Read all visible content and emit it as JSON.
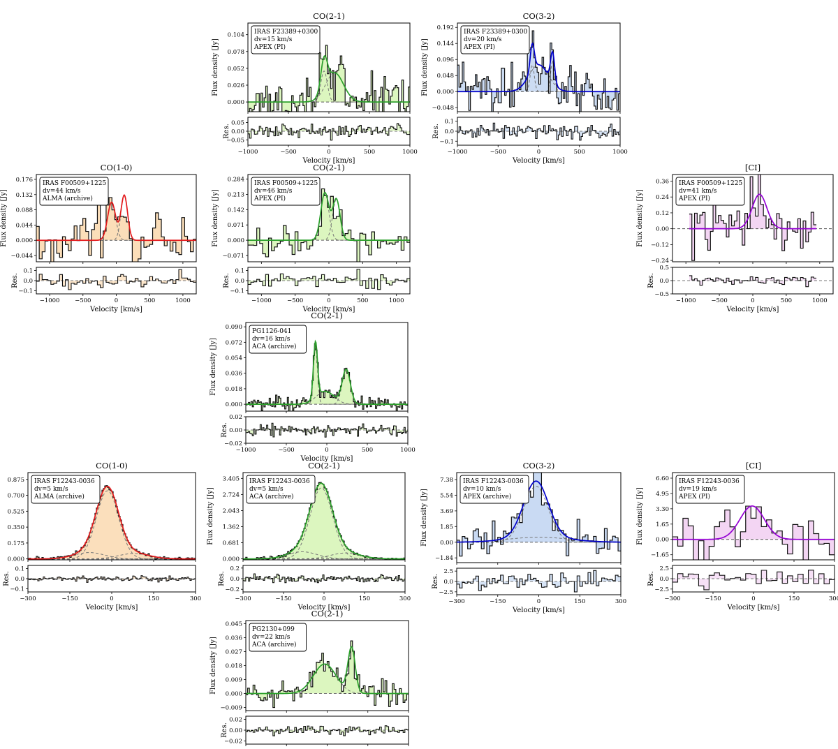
{
  "labels": {
    "ylabel_main": "Flux density [Jy]",
    "ylabel_res": "Res.",
    "xlabel": "Velocity [km/s]"
  },
  "chart_data": [
    {
      "id": "p1",
      "type": "line",
      "title": "CO(2-1)",
      "info": [
        "IRAS F23389+0300",
        "dv=15 km/s",
        "APEX (PI)"
      ],
      "color": "#2ca02c",
      "fill": "#d8f5b8",
      "xlim": [
        -1000,
        1000
      ],
      "xticks": [
        -1000,
        -500,
        0,
        500,
        1000
      ],
      "xtick_labels": [
        "−1000",
        "−500",
        "0",
        "500",
        "1000"
      ],
      "ylim": [
        -0.015,
        0.122
      ],
      "yticks": [
        0.0,
        0.026,
        0.052,
        0.078,
        0.104
      ],
      "ytick_labels": [
        "0.000",
        "0.026",
        "0.052",
        "0.078",
        "0.104"
      ],
      "res_ylim": [
        -0.08,
        0.08
      ],
      "res_yticks": [
        -0.05,
        0.0,
        0.05
      ],
      "res_ytick_labels": [
        "−0.05",
        "0.00",
        "0.05"
      ],
      "components": [
        {
          "a": 0.048,
          "mu": -60,
          "sigma": 40
        },
        {
          "a": 0.045,
          "mu": 70,
          "sigma": 110
        }
      ],
      "noise": 0.018,
      "res_noise": 0.018,
      "nbins": 100,
      "baseline_fill": false,
      "seed": 11
    },
    {
      "id": "p2",
      "type": "line",
      "title": "CO(3-2)",
      "info": [
        "IRAS F23389+0300",
        "dv=20 km/s",
        "APEX (PI)"
      ],
      "color": "#0000cc",
      "fill": "#c6d8f2",
      "xlim": [
        -1000,
        1000
      ],
      "xticks": [
        -1000,
        -500,
        0,
        500,
        1000
      ],
      "xtick_labels": [
        "−1000",
        "−500",
        "0",
        "500",
        "1000"
      ],
      "ylim": [
        -0.06,
        0.205
      ],
      "yticks": [
        -0.048,
        0.0,
        0.048,
        0.096,
        0.144,
        0.192
      ],
      "ytick_labels": [
        "−0.048",
        "0.000",
        "0.048",
        "0.096",
        "0.144",
        "0.192"
      ],
      "res_ylim": [
        -0.14,
        0.14
      ],
      "res_yticks": [
        -0.1,
        0.0,
        0.1
      ],
      "res_ytick_labels": [
        "−0.1",
        "0.0",
        "0.1"
      ],
      "components": [
        {
          "a": 0.08,
          "mu": -80,
          "sigma": 25
        },
        {
          "a": 0.09,
          "mu": 170,
          "sigma": 25
        },
        {
          "a": 0.08,
          "mu": 0,
          "sigma": 120
        }
      ],
      "noise": 0.04,
      "res_noise": 0.04,
      "nbins": 100,
      "baseline_fill": false,
      "seed": 23
    },
    {
      "id": "p3",
      "type": "line",
      "title": "CO(1-0)",
      "info": [
        "IRAS F00509+1225",
        "dv=44 km/s",
        "ALMA (archive)"
      ],
      "color": "#e31a1c",
      "fill": "#fbdcb5",
      "xlim": [
        -1200,
        1200
      ],
      "xticks": [
        -1000,
        -500,
        0,
        500,
        1000
      ],
      "xtick_labels": [
        "−1000",
        "−500",
        "0",
        "500",
        "1000"
      ],
      "ylim": [
        -0.062,
        0.19
      ],
      "yticks": [
        -0.044,
        0.0,
        0.044,
        0.088,
        0.132,
        0.176
      ],
      "ytick_labels": [
        "−0.044",
        "0.000",
        "0.044",
        "0.088",
        "0.132",
        "0.176"
      ],
      "res_ylim": [
        -0.13,
        0.13
      ],
      "res_yticks": [
        -0.1,
        0.0,
        0.1
      ],
      "res_ytick_labels": [
        "−0.1",
        "0.0",
        "0.1"
      ],
      "components": [
        {
          "a": 0.11,
          "mu": -70,
          "sigma": 60
        },
        {
          "a": 0.13,
          "mu": 120,
          "sigma": 50
        }
      ],
      "noise": 0.035,
      "res_noise": 0.035,
      "nbins": 55,
      "baseline_fill": true,
      "seed": 37
    },
    {
      "id": "p4",
      "type": "line",
      "title": "CO(2-1)",
      "info": [
        "IRAS F00509+1225",
        "dv=46 km/s",
        "APEX (PI)"
      ],
      "color": "#2ca02c",
      "fill": "#d8f5b8",
      "xlim": [
        -1200,
        1200
      ],
      "xticks": [
        -1000,
        -500,
        0,
        500,
        1000
      ],
      "xtick_labels": [
        "−1000",
        "−500",
        "0",
        "500",
        "1000"
      ],
      "ylim": [
        -0.1,
        0.305
      ],
      "yticks": [
        -0.071,
        0.0,
        0.071,
        0.142,
        0.213,
        0.284
      ],
      "ytick_labels": [
        "−0.071",
        "0.000",
        "0.071",
        "0.142",
        "0.213",
        "0.284"
      ],
      "res_ylim": [
        -0.13,
        0.13
      ],
      "res_yticks": [
        -0.1,
        0.0,
        0.1
      ],
      "res_ytick_labels": [
        "−0.1",
        "0.0",
        "0.1"
      ],
      "components": [
        {
          "a": 0.22,
          "mu": -60,
          "sigma": 60
        },
        {
          "a": 0.19,
          "mu": 110,
          "sigma": 55
        }
      ],
      "noise": 0.04,
      "res_noise": 0.04,
      "nbins": 55,
      "baseline_fill": false,
      "seed": 41
    },
    {
      "id": "p5",
      "type": "line",
      "title": "[CI]",
      "info": [
        "IRAS F00509+1225",
        "dv=41 km/s",
        "APEX (PI)"
      ],
      "color": "#9400d3",
      "fill": "#f2d3f2",
      "xlim": [
        -1200,
        1200
      ],
      "xticks": [
        -1000,
        -500,
        0,
        500,
        1000
      ],
      "xtick_labels": [
        "−1000",
        "−500",
        "0",
        "500",
        "1000"
      ],
      "ylim": [
        -0.25,
        0.41
      ],
      "yticks": [
        -0.24,
        -0.12,
        0.0,
        0.12,
        0.24,
        0.36
      ],
      "ytick_labels": [
        "−0.24",
        "−0.12",
        "0.00",
        "0.12",
        "0.24",
        "0.36"
      ],
      "res_ylim": [
        -0.5,
        0.5
      ],
      "res_yticks": [
        -0.5,
        0.0,
        0.5
      ],
      "res_ytick_labels": [
        "−0.5",
        "0.0",
        "0.5"
      ],
      "components": [
        {
          "a": 0.26,
          "mu": 100,
          "sigma": 110
        }
      ],
      "noise": 0.11,
      "res_noise": 0.08,
      "nbins": 48,
      "data_xrange": [
        -950,
        950
      ],
      "baseline_fill": true,
      "seed": 53
    },
    {
      "id": "p6",
      "type": "line",
      "title": "CO(2-1)",
      "info": [
        "PG1126-041",
        "dv=16 km/s",
        "ACA (archive)"
      ],
      "color": "#2ca02c",
      "fill": "#d8f5b8",
      "xlim": [
        -1000,
        1000
      ],
      "xticks": [
        -1000,
        -500,
        0,
        500,
        1000
      ],
      "xtick_labels": [
        "−1000",
        "−500",
        "0",
        "500",
        "1000"
      ],
      "ylim": [
        -0.008,
        0.095
      ],
      "yticks": [
        0.0,
        0.018,
        0.036,
        0.054,
        0.072,
        0.09
      ],
      "ytick_labels": [
        "0.000",
        "0.018",
        "0.036",
        "0.054",
        "0.072",
        "0.090"
      ],
      "res_ylim": [
        -0.02,
        0.02
      ],
      "res_yticks": [
        -0.02,
        0.0,
        0.02
      ],
      "res_ytick_labels": [
        "−0.02",
        "0.00",
        "0.02"
      ],
      "components": [
        {
          "a": 0.065,
          "mu": -140,
          "sigma": 25
        },
        {
          "a": 0.015,
          "mu": -20,
          "sigma": 110
        },
        {
          "a": 0.04,
          "mu": 240,
          "sigma": 50
        }
      ],
      "noise": 0.004,
      "res_noise": 0.004,
      "nbins": 125,
      "baseline_fill": false,
      "seed": 67
    },
    {
      "id": "p7",
      "type": "line",
      "title": "CO(1-0)",
      "info": [
        "IRAS F12243-0036",
        "dv=5 km/s",
        "ALMA (archive)"
      ],
      "color": "#e31a1c",
      "fill": "#fbdcb5",
      "xlim": [
        -300,
        300
      ],
      "xticks": [
        -300,
        -150,
        0,
        150,
        300
      ],
      "xtick_labels": [
        "−300",
        "−150",
        "0",
        "150",
        "300"
      ],
      "ylim": [
        -0.01,
        0.95
      ],
      "yticks": [
        0.0,
        0.175,
        0.35,
        0.525,
        0.7,
        0.875
      ],
      "ytick_labels": [
        "0.000",
        "0.175",
        "0.350",
        "0.525",
        "0.700",
        "0.875"
      ],
      "res_ylim": [
        -0.13,
        0.13
      ],
      "res_yticks": [
        -0.1,
        0.0,
        0.1
      ],
      "res_ytick_labels": [
        "−0.1",
        "0.0",
        "0.1"
      ],
      "components": [
        {
          "a": 0.75,
          "mu": -15,
          "sigma": 40
        },
        {
          "a": 0.07,
          "mu": -80,
          "sigma": 55
        },
        {
          "a": 0.06,
          "mu": 80,
          "sigma": 55
        }
      ],
      "noise": 0.012,
      "res_noise": 0.012,
      "nbins": 120,
      "baseline_fill": false,
      "seed": 71
    },
    {
      "id": "p8",
      "type": "line",
      "title": "CO(2-1)",
      "info": [
        "IRAS F12243-0036",
        "dv=5 km/s",
        "ACA (archive)"
      ],
      "color": "#2ca02c",
      "fill": "#d8f5b8",
      "xlim": [
        -300,
        300
      ],
      "xticks": [
        -300,
        -150,
        0,
        150,
        300
      ],
      "xtick_labels": [
        "−300",
        "−150",
        "0",
        "150",
        "300"
      ],
      "ylim": [
        -0.04,
        3.65
      ],
      "yticks": [
        0.0,
        0.681,
        1.362,
        2.043,
        2.724,
        3.405
      ],
      "ytick_labels": [
        "0.000",
        "0.681",
        "1.362",
        "2.043",
        "2.724",
        "3.405"
      ],
      "res_ylim": [
        -0.25,
        0.25
      ],
      "res_yticks": [
        -0.2,
        0.0,
        0.2
      ],
      "res_ytick_labels": [
        "−0.2",
        "0.0",
        "0.2"
      ],
      "components": [
        {
          "a": 3.0,
          "mu": -10,
          "sigma": 42
        },
        {
          "a": 0.3,
          "mu": -80,
          "sigma": 55
        },
        {
          "a": 0.25,
          "mu": 80,
          "sigma": 55
        }
      ],
      "noise": 0.04,
      "res_noise": 0.04,
      "nbins": 120,
      "baseline_fill": false,
      "seed": 83
    },
    {
      "id": "p9",
      "type": "line",
      "title": "CO(3-2)",
      "info": [
        "IRAS F12243-0036",
        "dv=10 km/s",
        "APEX (archive)"
      ],
      "color": "#0000cc",
      "fill": "#c6d8f2",
      "xlim": [
        -300,
        300
      ],
      "xticks": [
        -300,
        -150,
        0,
        150,
        300
      ],
      "xtick_labels": [
        "−300",
        "−150",
        "0",
        "150",
        "300"
      ],
      "ylim": [
        -2.4,
        8.2
      ],
      "yticks": [
        -1.84,
        0.0,
        1.85,
        3.69,
        5.54,
        7.38
      ],
      "ytick_labels": [
        "−1.84",
        "0.00",
        "1.85",
        "3.69",
        "5.54",
        "7.38"
      ],
      "res_ylim": [
        -3.2,
        3.2
      ],
      "res_yticks": [
        -2.5,
        0.0,
        2.5
      ],
      "res_ytick_labels": [
        "−2.5",
        "0.0",
        "2.5"
      ],
      "components": [
        {
          "a": 6.6,
          "mu": -10,
          "sigma": 45
        },
        {
          "a": 0.6,
          "mu": 0,
          "sigma": 110
        }
      ],
      "noise": 1.1,
      "res_noise": 1.1,
      "nbins": 60,
      "baseline_fill": true,
      "seed": 97
    },
    {
      "id": "p10",
      "type": "line",
      "title": "[CI]",
      "info": [
        "IRAS F12243-0036",
        "dv=19 km/s",
        "APEX (PI)"
      ],
      "color": "#9400d3",
      "fill": "#f2d3f2",
      "xlim": [
        -300,
        300
      ],
      "xticks": [
        -300,
        -150,
        0,
        150,
        300
      ],
      "xtick_labels": [
        "−300",
        "−150",
        "0",
        "150",
        "300"
      ],
      "ylim": [
        -2.2,
        7.2
      ],
      "yticks": [
        -1.65,
        0.0,
        1.65,
        3.3,
        4.95,
        6.6
      ],
      "ytick_labels": [
        "−1.65",
        "0.00",
        "1.65",
        "3.30",
        "4.95",
        "6.60"
      ],
      "res_ylim": [
        -3.2,
        3.2
      ],
      "res_yticks": [
        -2.5,
        0.0,
        2.5
      ],
      "res_ytick_labels": [
        "−2.5",
        "0.0",
        "2.5"
      ],
      "components": [
        {
          "a": 3.6,
          "mu": -5,
          "sigma": 45
        }
      ],
      "noise": 1.5,
      "res_noise": 1.2,
      "nbins": 31,
      "baseline_fill": true,
      "seed": 101
    },
    {
      "id": "p11",
      "type": "line",
      "title": "CO(2-1)",
      "info": [
        "PG2130+099",
        "dv=22 km/s",
        "ACA (archive)"
      ],
      "color": "#2ca02c",
      "fill": "#d8f5b8",
      "xlim": [
        -1000,
        1000
      ],
      "xticks": [
        -1000,
        -500,
        0,
        500,
        1000
      ],
      "xtick_labels": [
        "−1000",
        "−500",
        "0",
        "500",
        "1000"
      ],
      "ylim": [
        -0.011,
        0.047
      ],
      "yticks": [
        -0.009,
        0.0,
        0.009,
        0.018,
        0.027,
        0.036,
        0.045
      ],
      "ytick_labels": [
        "−0.009",
        "0.000",
        "0.009",
        "0.018",
        "0.027",
        "0.036",
        "0.045"
      ],
      "res_ylim": [
        -0.026,
        0.026
      ],
      "res_yticks": [
        -0.02,
        0.0,
        0.02
      ],
      "res_ytick_labels": [
        "−0.02",
        "0.00",
        "0.02"
      ],
      "components": [
        {
          "a": 0.019,
          "mu": -30,
          "sigma": 140
        },
        {
          "a": 0.029,
          "mu": 300,
          "sigma": 45
        }
      ],
      "noise": 0.004,
      "res_noise": 0.004,
      "nbins": 90,
      "baseline_fill": false,
      "seed": 113
    }
  ]
}
